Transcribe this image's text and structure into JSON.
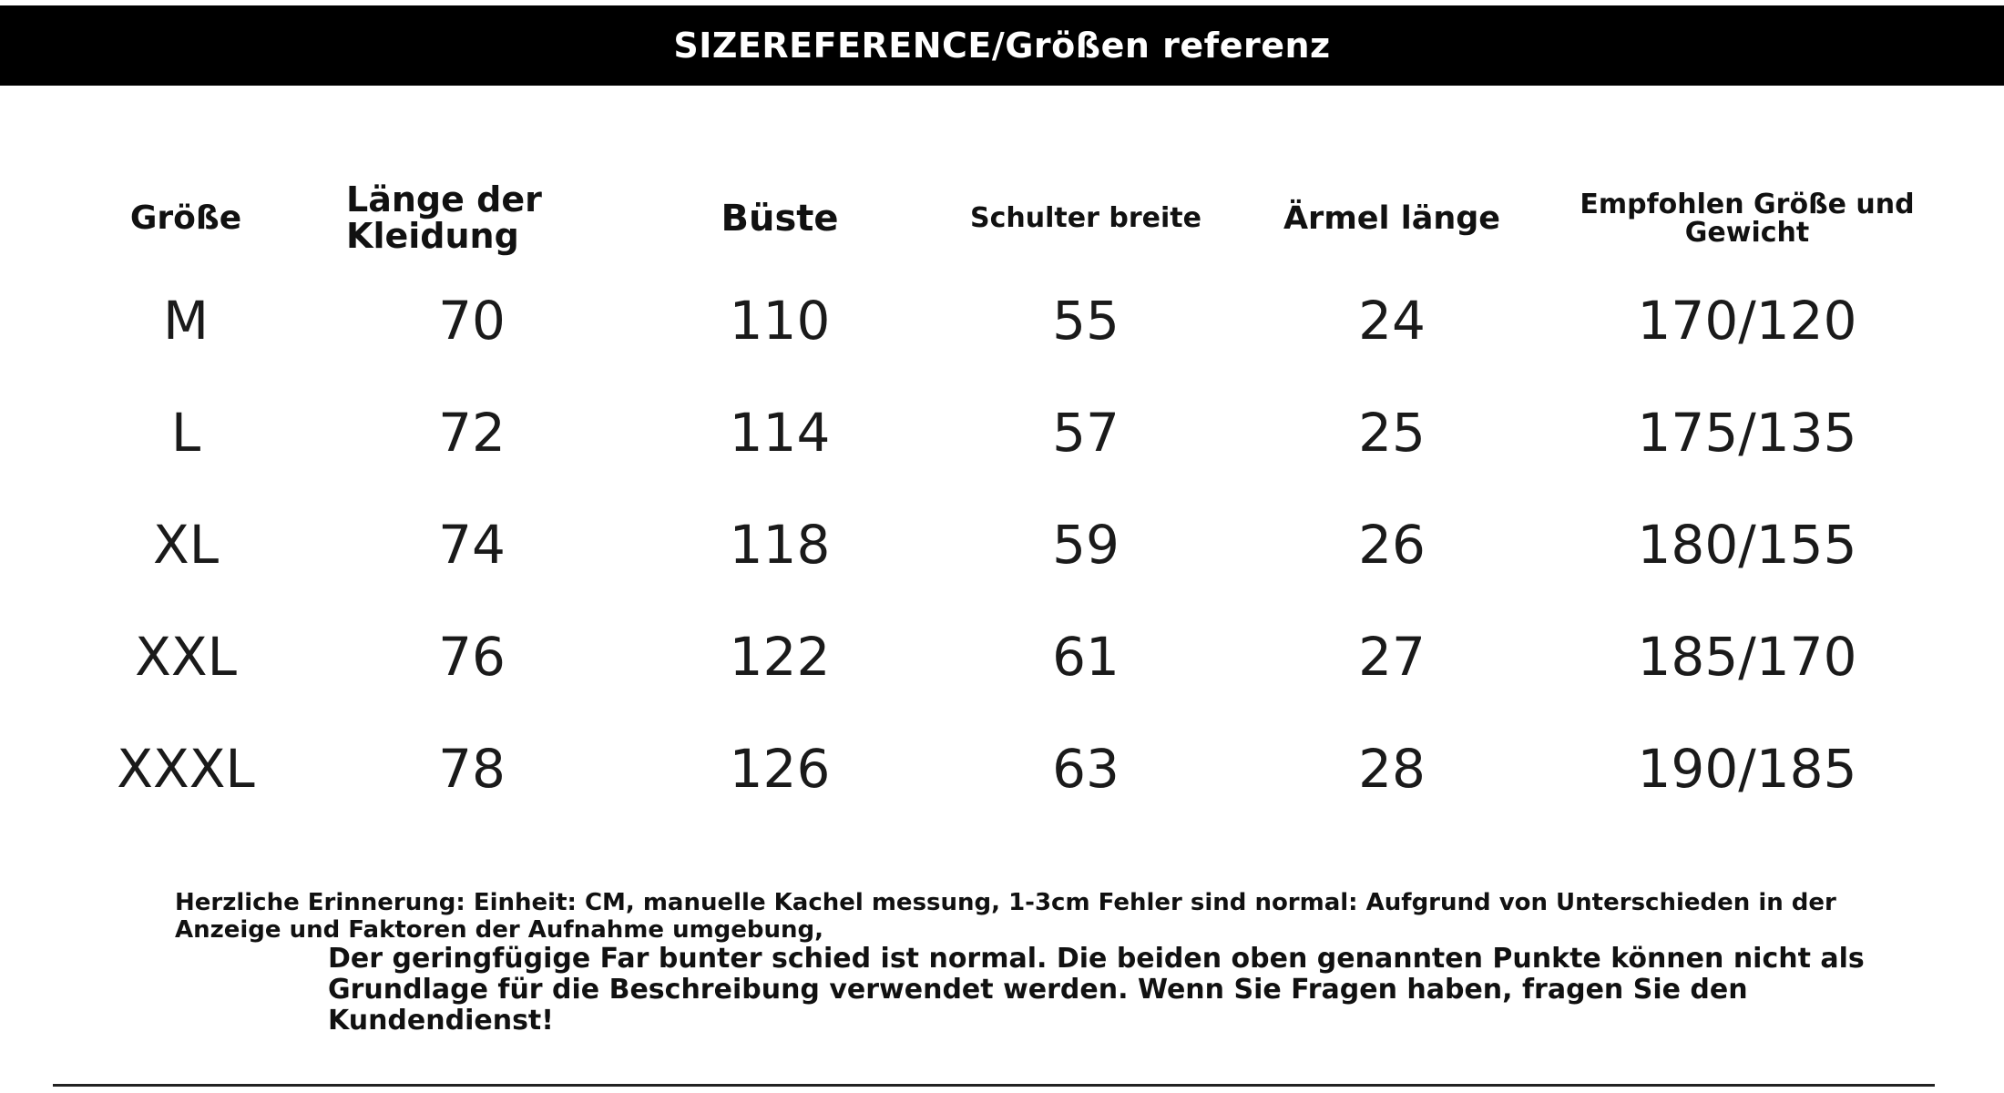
{
  "header": {
    "title": "SIZEREFERENCE/Größen referenz"
  },
  "table": {
    "columns": [
      "Größe",
      "Länge der Kleidung",
      "Büste",
      "Schulter breite",
      "Ärmel länge",
      "Empfohlen Größe und Gewicht"
    ],
    "rows": [
      {
        "size": "M",
        "length": "70",
        "bust": "110",
        "shoulder": "55",
        "sleeve": "24",
        "recommended": "170/120"
      },
      {
        "size": "L",
        "length": "72",
        "bust": "114",
        "shoulder": "57",
        "sleeve": "25",
        "recommended": "175/135"
      },
      {
        "size": "XL",
        "length": "74",
        "bust": "118",
        "shoulder": "59",
        "sleeve": "26",
        "recommended": "180/155"
      },
      {
        "size": "XXL",
        "length": "76",
        "bust": "122",
        "shoulder": "61",
        "sleeve": "27",
        "recommended": "185/170"
      },
      {
        "size": "XXXL",
        "length": "78",
        "bust": "126",
        "shoulder": "63",
        "sleeve": "28",
        "recommended": "190/185"
      }
    ]
  },
  "notice": {
    "line1": "Herzliche Erinnerung: Einheit: CM, manuelle Kachel messung, 1-3cm Fehler sind normal: Aufgrund von Unterschieden in der Anzeige und Faktoren der Aufnahme umgebung,",
    "line2": "Der geringfügige Far bunter schied ist normal. Die beiden oben genannten Punkte können nicht als Grundlage für die Beschreibung verwendet werden. Wenn Sie Fragen haben, fragen Sie den Kundendienst!"
  },
  "colors": {
    "header_bg": "#000000",
    "header_text": "#ffffff",
    "text": "#111111"
  }
}
